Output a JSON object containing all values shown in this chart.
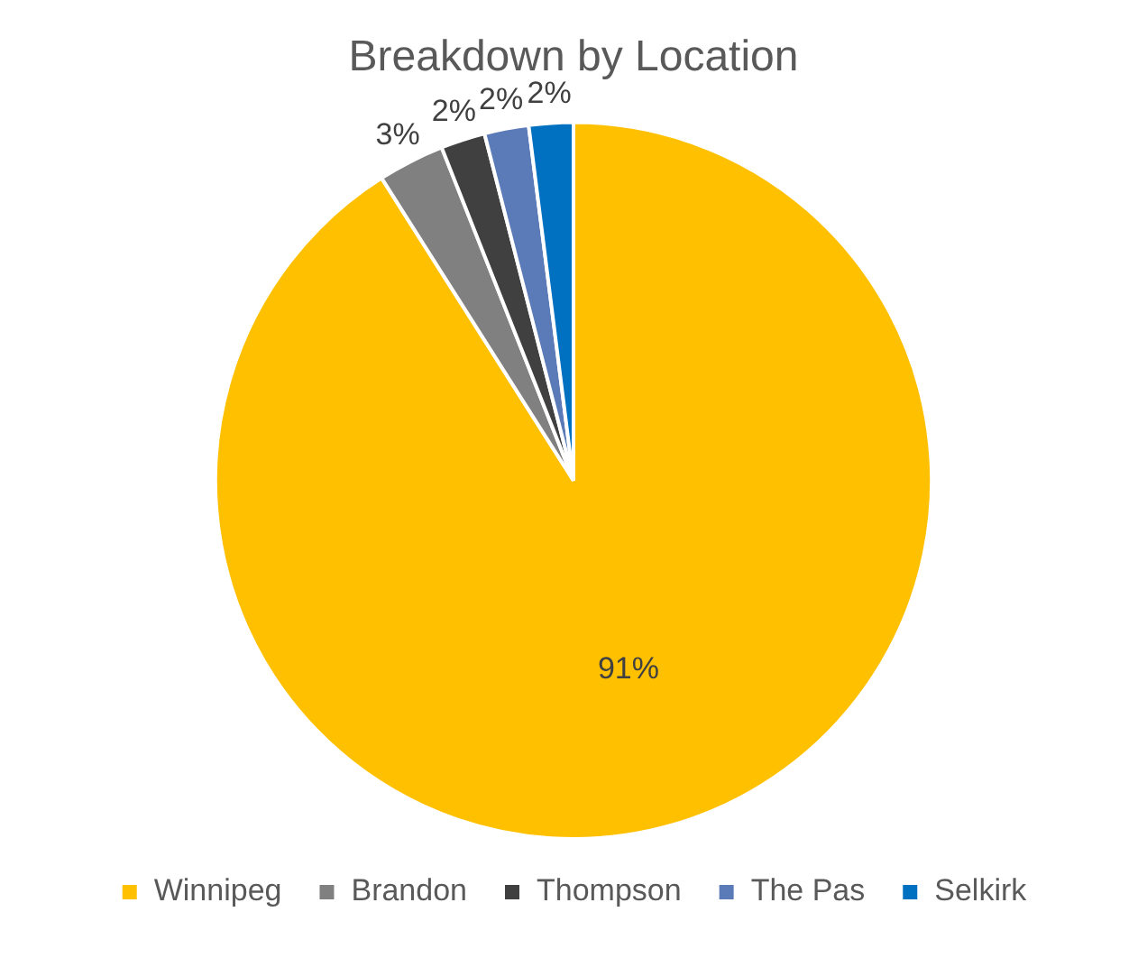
{
  "chart_data": {
    "type": "pie",
    "title": "Breakdown by Location",
    "categories": [
      "Winnipeg",
      "Brandon",
      "Thompson",
      "The Pas",
      "Selkirk"
    ],
    "values": [
      91,
      3,
      2,
      2,
      2
    ],
    "colors": [
      "#ffc000",
      "#808080",
      "#404040",
      "#5b7bb8",
      "#0070c0"
    ],
    "value_labels": [
      "91%",
      "3%",
      "2%",
      "2%",
      "2%"
    ],
    "legend": "bottom"
  }
}
